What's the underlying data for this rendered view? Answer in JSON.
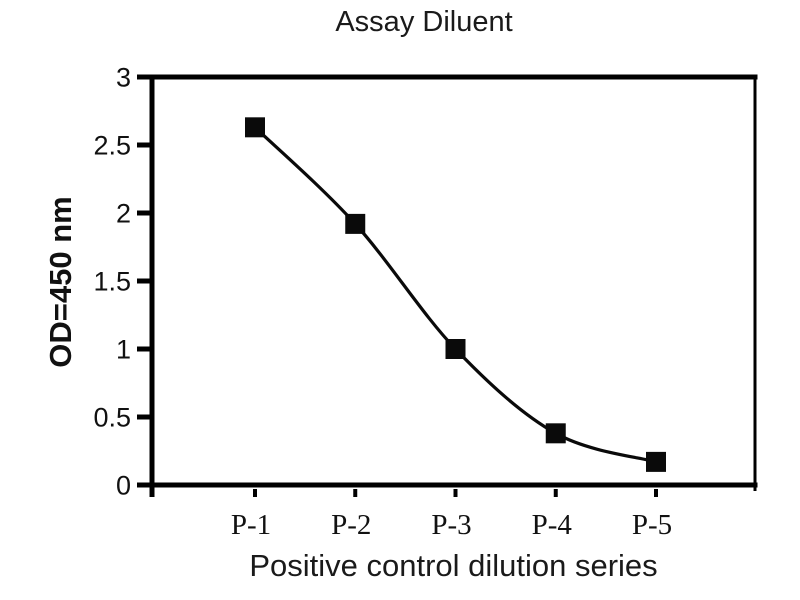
{
  "chart_data": {
    "type": "line",
    "title": "Assay Diluent",
    "categories": [
      "P-1",
      "P-2",
      "P-3",
      "P-4",
      "P-5"
    ],
    "series": [
      {
        "name": "Positive control",
        "values": [
          2.63,
          1.92,
          1.0,
          0.38,
          0.17
        ]
      }
    ],
    "xlabel": "Positive control dilution series",
    "ylabel": "OD=450 nm",
    "ylim": [
      0,
      3
    ],
    "yticks": [
      0,
      0.5,
      1,
      1.5,
      2,
      2.5,
      3
    ],
    "ytick_labels": [
      "0",
      "0.5",
      "1",
      "1.5",
      "2",
      "2.5",
      "3"
    ],
    "grid": false,
    "legend": false,
    "marker": "square",
    "marker_color": "#0a0a0a",
    "line_color": "#0a0a0a",
    "axis_color": "#000000",
    "background": "#ffffff"
  }
}
